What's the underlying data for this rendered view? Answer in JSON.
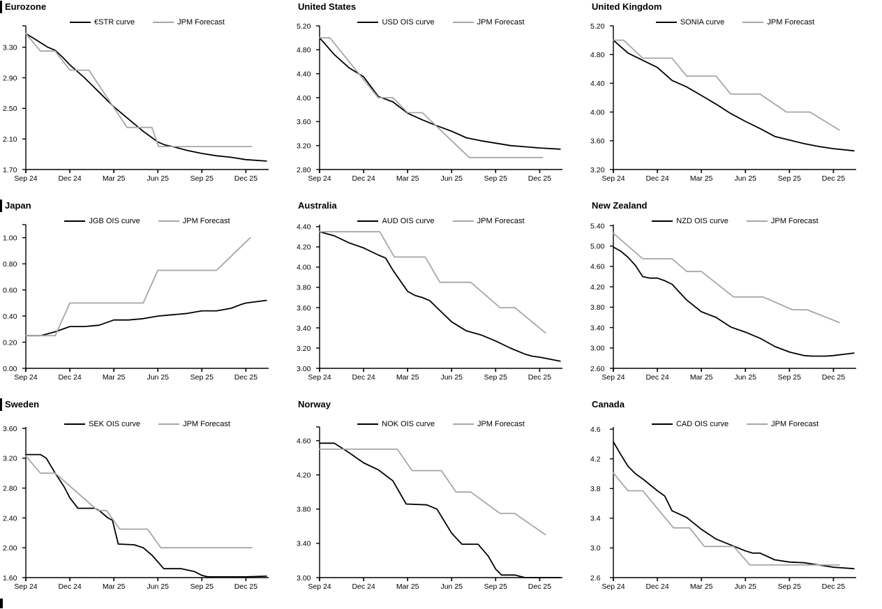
{
  "page": {
    "background": "#ffffff",
    "curve_color": "#000000",
    "forecast_color": "#a6a6a6",
    "xtick_labels_shared": [
      "Sep 24",
      "Dec 24",
      "Mar 25",
      "Jun 25",
      "Sep 25",
      "Dec 25"
    ]
  },
  "chart_data": [
    {
      "type": "line",
      "title": "Eurozone",
      "left_bar": true,
      "row": 0,
      "grid": false,
      "legend_position": "top-center-inside",
      "xtick_labels": [
        "Sep 24",
        "Dec 24",
        "Mar 25",
        "Jun 25",
        "Sep 25",
        "Dec 25"
      ],
      "xtick_positions": [
        0,
        3,
        6,
        9,
        12,
        15
      ],
      "xlim": [
        0,
        16.55
      ],
      "ylim": [
        1.7,
        3.58
      ],
      "yticks": [
        1.7,
        2.1,
        2.5,
        2.9,
        3.3
      ],
      "ytick_labels": [
        "1.70",
        "2.10",
        "2.50",
        "2.90",
        "3.30"
      ],
      "series": [
        {
          "name": "€STR curve",
          "color": "#000000",
          "x": [
            0,
            0.5,
            1,
            1.5,
            2,
            2.5,
            3,
            4,
            5,
            6,
            6.5,
            7,
            7.5,
            8,
            8.5,
            9,
            9.5,
            10,
            11,
            12,
            13,
            14,
            15,
            16.4
          ],
          "y": [
            3.48,
            3.42,
            3.36,
            3.3,
            3.26,
            3.17,
            3.07,
            2.9,
            2.71,
            2.52,
            2.44,
            2.36,
            2.28,
            2.2,
            2.13,
            2.06,
            2.02,
            2.0,
            1.95,
            1.91,
            1.88,
            1.86,
            1.83,
            1.81
          ]
        },
        {
          "name": "JPM Forecast",
          "color": "#a6a6a6",
          "x": [
            0,
            1,
            2,
            3,
            4.3,
            6.9,
            8.6,
            9.05,
            15.4
          ],
          "y": [
            3.48,
            3.25,
            3.25,
            3.0,
            3.0,
            2.25,
            2.25,
            2.0,
            2.0
          ]
        }
      ]
    },
    {
      "type": "line",
      "title": "United States",
      "left_bar": false,
      "row": 0,
      "grid": false,
      "legend_position": "top-center-inside",
      "xtick_labels": [
        "Sep 24",
        "Dec 24",
        "Mar 25",
        "Jun 25",
        "Sep 25",
        "Dec 25"
      ],
      "xtick_positions": [
        0,
        3,
        6,
        9,
        12,
        15
      ],
      "xlim": [
        0,
        16.55
      ],
      "ylim": [
        2.8,
        5.2
      ],
      "yticks": [
        2.8,
        3.2,
        3.6,
        4.0,
        4.4,
        4.8,
        5.2
      ],
      "ytick_labels": [
        "2.80",
        "3.20",
        "3.60",
        "4.00",
        "4.40",
        "4.80",
        "5.20"
      ],
      "series": [
        {
          "name": "USD OIS curve",
          "color": "#000000",
          "x": [
            0,
            1,
            2,
            3,
            4,
            5,
            6,
            7,
            8,
            9,
            10,
            11,
            12,
            13,
            14,
            15,
            16.4
          ],
          "y": [
            5.0,
            4.72,
            4.5,
            4.35,
            4.02,
            3.93,
            3.74,
            3.63,
            3.53,
            3.44,
            3.33,
            3.28,
            3.24,
            3.2,
            3.18,
            3.16,
            3.14
          ]
        },
        {
          "name": "JPM Forecast",
          "color": "#a6a6a6",
          "x": [
            0,
            0.7,
            4,
            5,
            6,
            7,
            10.2,
            15.2
          ],
          "y": [
            5.0,
            5.0,
            4.0,
            4.0,
            3.75,
            3.75,
            3.0,
            3.0
          ]
        }
      ]
    },
    {
      "type": "line",
      "title": "United Kingdom",
      "left_bar": false,
      "row": 0,
      "grid": false,
      "legend_position": "top-center-inside",
      "xtick_labels": [
        "Sep 24",
        "Dec 24",
        "Mar 25",
        "Jun 25",
        "Sep 25",
        "Dec 25"
      ],
      "xtick_positions": [
        0,
        3,
        6,
        9,
        12,
        15
      ],
      "xlim": [
        0,
        16.55
      ],
      "ylim": [
        3.2,
        5.2
      ],
      "yticks": [
        3.2,
        3.6,
        4.0,
        4.4,
        4.8,
        5.2
      ],
      "ytick_labels": [
        "3.20",
        "3.60",
        "4.00",
        "4.40",
        "4.80",
        "5.20"
      ],
      "series": [
        {
          "name": "SONIA curve",
          "color": "#000000",
          "x": [
            0,
            1,
            2,
            3,
            4,
            5,
            6,
            7,
            8,
            9,
            10,
            11,
            12,
            13,
            14,
            15,
            16.4
          ],
          "y": [
            5.0,
            4.82,
            4.72,
            4.62,
            4.44,
            4.35,
            4.23,
            4.11,
            3.98,
            3.87,
            3.77,
            3.66,
            3.61,
            3.56,
            3.52,
            3.49,
            3.46
          ]
        },
        {
          "name": "JPM Forecast",
          "color": "#a6a6a6",
          "x": [
            0,
            0.7,
            2,
            4,
            5,
            7,
            8,
            10,
            11.8,
            13.4,
            15.4
          ],
          "y": [
            5.0,
            5.0,
            4.75,
            4.75,
            4.5,
            4.5,
            4.25,
            4.25,
            4.0,
            4.0,
            3.75
          ]
        }
      ]
    },
    {
      "type": "line",
      "title": "Japan",
      "left_bar": true,
      "row": 1,
      "grid": false,
      "legend_position": "top-center-inside",
      "xtick_labels": [
        "Sep 24",
        "Dec 24",
        "Mar 25",
        "Jun 25",
        "Sep 25",
        "Dec 25"
      ],
      "xtick_positions": [
        0,
        3,
        6,
        9,
        12,
        15
      ],
      "xlim": [
        0,
        16.55
      ],
      "ylim": [
        0.0,
        1.1
      ],
      "yticks": [
        0.0,
        0.2,
        0.4,
        0.6,
        0.8,
        1.0
      ],
      "ytick_labels": [
        "0.00",
        "0.20",
        "0.40",
        "0.60",
        "0.80",
        "1.00"
      ],
      "series": [
        {
          "name": "JGB OIS curve",
          "color": "#000000",
          "x": [
            0,
            1,
            2,
            3,
            4,
            5,
            6,
            7,
            8,
            9,
            10,
            11,
            12,
            13,
            14,
            14.7,
            15,
            16.4
          ],
          "y": [
            0.25,
            0.25,
            0.28,
            0.32,
            0.32,
            0.33,
            0.37,
            0.37,
            0.38,
            0.4,
            0.41,
            0.42,
            0.44,
            0.44,
            0.46,
            0.49,
            0.5,
            0.52
          ]
        },
        {
          "name": "JPM Forecast",
          "color": "#a6a6a6",
          "x": [
            0,
            2,
            3,
            8,
            9,
            13,
            15.3
          ],
          "y": [
            0.25,
            0.25,
            0.5,
            0.5,
            0.75,
            0.75,
            1.0
          ]
        }
      ]
    },
    {
      "type": "line",
      "title": "Australia",
      "left_bar": false,
      "row": 1,
      "grid": false,
      "legend_position": "top-center-inside",
      "xtick_labels": [
        "Sep 24",
        "Dec 24",
        "Mar 25",
        "Jun 25",
        "Sep 25",
        "Dec 25"
      ],
      "xtick_positions": [
        0,
        3,
        6,
        9,
        12,
        15
      ],
      "xlim": [
        0,
        16.55
      ],
      "ylim": [
        3.0,
        4.42
      ],
      "yticks": [
        3.0,
        3.2,
        3.4,
        3.6,
        3.8,
        4.0,
        4.2,
        4.4
      ],
      "ytick_labels": [
        "3.00",
        "3.20",
        "3.40",
        "3.60",
        "3.80",
        "4.00",
        "4.20",
        "4.40"
      ],
      "series": [
        {
          "name": "AUD OIS curve",
          "color": "#000000",
          "x": [
            0,
            0.5,
            1,
            2,
            3,
            4,
            4.5,
            5,
            6,
            6.5,
            7,
            7.5,
            8,
            9,
            10,
            11,
            12,
            13,
            14,
            14.5,
            15,
            16.4
          ],
          "y": [
            4.35,
            4.33,
            4.31,
            4.24,
            4.19,
            4.12,
            4.09,
            3.97,
            3.76,
            3.72,
            3.7,
            3.67,
            3.6,
            3.46,
            3.37,
            3.33,
            3.27,
            3.2,
            3.14,
            3.12,
            3.11,
            3.07
          ]
        },
        {
          "name": "JPM Forecast",
          "color": "#a6a6a6",
          "x": [
            0,
            4.1,
            5.1,
            7.2,
            8.2,
            10.3,
            12.3,
            13.3,
            15.4
          ],
          "y": [
            4.35,
            4.35,
            4.1,
            4.1,
            3.85,
            3.85,
            3.6,
            3.6,
            3.35
          ]
        }
      ]
    },
    {
      "type": "line",
      "title": "New Zealand",
      "left_bar": false,
      "row": 1,
      "grid": false,
      "legend_position": "top-center-inside",
      "xtick_labels": [
        "Sep 24",
        "Dec 24",
        "Mar 25",
        "Jun 25",
        "Sep 25",
        "Dec 25"
      ],
      "xtick_positions": [
        0,
        3,
        6,
        9,
        12,
        15
      ],
      "xlim": [
        0,
        16.55
      ],
      "ylim": [
        2.6,
        5.42
      ],
      "yticks": [
        2.6,
        3.0,
        3.4,
        3.8,
        4.2,
        4.6,
        5.0,
        5.4
      ],
      "ytick_labels": [
        "2.60",
        "3.00",
        "3.40",
        "3.80",
        "4.20",
        "4.60",
        "5.00",
        "5.40"
      ],
      "series": [
        {
          "name": "NZD OIS curve",
          "color": "#000000",
          "x": [
            0,
            0.5,
            1,
            1.5,
            2,
            2.5,
            3,
            3.5,
            4,
            5,
            6,
            7,
            8,
            9,
            10,
            11,
            12,
            13,
            13.5,
            14,
            14.5,
            15,
            16.4
          ],
          "y": [
            4.98,
            4.9,
            4.78,
            4.62,
            4.4,
            4.37,
            4.37,
            4.32,
            4.25,
            3.94,
            3.71,
            3.6,
            3.41,
            3.31,
            3.19,
            3.03,
            2.92,
            2.85,
            2.84,
            2.84,
            2.84,
            2.85,
            2.9
          ]
        },
        {
          "name": "JPM Forecast",
          "color": "#a6a6a6",
          "x": [
            0,
            2,
            4,
            5,
            6,
            8.2,
            10.2,
            12.2,
            13.2,
            15.4
          ],
          "y": [
            5.25,
            4.75,
            4.75,
            4.5,
            4.5,
            4.0,
            4.0,
            3.75,
            3.75,
            3.5
          ]
        }
      ]
    },
    {
      "type": "line",
      "title": "Sweden",
      "left_bar": true,
      "row": 2,
      "grid": false,
      "legend_position": "top-center-inside",
      "xtick_labels": [
        "Sep 24",
        "Dec 24",
        "Mar 25",
        "Jun 25",
        "Sep 25",
        "Dec 25"
      ],
      "xtick_positions": [
        0,
        3,
        6,
        9,
        12,
        15
      ],
      "xlim": [
        0,
        16.55
      ],
      "ylim": [
        1.6,
        3.62
      ],
      "yticks": [
        1.6,
        2.0,
        2.4,
        2.8,
        3.2,
        3.6
      ],
      "ytick_labels": [
        "1.60",
        "2.00",
        "2.40",
        "2.80",
        "3.20",
        "3.60"
      ],
      "series": [
        {
          "name": "SEK OIS curve",
          "color": "#000000",
          "x": [
            0,
            1,
            1.4,
            2,
            2.6,
            3,
            3.55,
            4.7,
            5,
            5.6,
            5.9,
            6.3,
            7.4,
            8,
            8.6,
            9.4,
            10.6,
            11.5,
            12,
            12.4,
            13,
            15,
            16.4
          ],
          "y": [
            3.25,
            3.25,
            3.2,
            3.0,
            2.82,
            2.67,
            2.53,
            2.53,
            2.5,
            2.4,
            2.37,
            2.05,
            2.04,
            2.0,
            1.9,
            1.72,
            1.72,
            1.68,
            1.63,
            1.61,
            1.61,
            1.61,
            1.62
          ]
        },
        {
          "name": "JPM Forecast",
          "color": "#a6a6a6",
          "x": [
            0,
            1,
            2,
            4.9,
            5.5,
            6.4,
            8.3,
            9.2,
            15.4
          ],
          "y": [
            3.23,
            3.0,
            3.0,
            2.5,
            2.5,
            2.25,
            2.25,
            2.0,
            2.0
          ]
        }
      ]
    },
    {
      "type": "line",
      "title": "Norway",
      "left_bar": false,
      "row": 2,
      "grid": false,
      "legend_position": "top-center-inside",
      "xtick_labels": [
        "Sep 24",
        "Dec 24",
        "Mar 25",
        "Jun 25",
        "Sep 25",
        "Dec 25"
      ],
      "xtick_positions": [
        0,
        3,
        6,
        9,
        12,
        15
      ],
      "xlim": [
        0,
        16.55
      ],
      "ylim": [
        3.0,
        4.76
      ],
      "yticks": [
        3.0,
        3.4,
        3.8,
        4.2,
        4.6
      ],
      "ytick_labels": [
        "3.00",
        "3.40",
        "3.80",
        "4.20",
        "4.60"
      ],
      "series": [
        {
          "name": "NOK OIS curve",
          "color": "#000000",
          "x": [
            0,
            1,
            2,
            3,
            4,
            5,
            5.9,
            7.3,
            8,
            9,
            9.7,
            10.8,
            11.5,
            12,
            12.4,
            13.3,
            14,
            16.4
          ],
          "y": [
            4.57,
            4.57,
            4.46,
            4.34,
            4.26,
            4.13,
            3.86,
            3.85,
            3.8,
            3.52,
            3.39,
            3.39,
            3.25,
            3.1,
            3.03,
            3.03,
            3.0,
            3.0
          ]
        },
        {
          "name": "JPM Forecast",
          "color": "#a6a6a6",
          "x": [
            0,
            5.3,
            6.3,
            8.3,
            9.3,
            10.3,
            12.3,
            13.3,
            15.4
          ],
          "y": [
            4.5,
            4.5,
            4.25,
            4.25,
            4.0,
            4.0,
            3.75,
            3.75,
            3.5
          ]
        }
      ]
    },
    {
      "type": "line",
      "title": "Canada",
      "left_bar": false,
      "row": 2,
      "grid": false,
      "legend_position": "top-center-inside",
      "xtick_labels": [
        "Sep 24",
        "Dec 24",
        "Mar 25",
        "Jun 25",
        "Sep 25",
        "Dec 25"
      ],
      "xtick_positions": [
        0,
        3,
        6,
        9,
        12,
        15
      ],
      "xlim": [
        0,
        16.55
      ],
      "ylim": [
        2.6,
        4.63
      ],
      "yticks": [
        2.6,
        3.0,
        3.4,
        3.8,
        4.2,
        4.6
      ],
      "ytick_labels": [
        "2.6",
        "3.0",
        "3.4",
        "3.8",
        "4.2",
        "4.6"
      ],
      "series": [
        {
          "name": "CAD OIS curve",
          "color": "#000000",
          "x": [
            0,
            0.5,
            1,
            1.5,
            2,
            3,
            3.5,
            4,
            5,
            6,
            7,
            8,
            9,
            9.5,
            10,
            11,
            12,
            13,
            14,
            15,
            16.4
          ],
          "y": [
            4.43,
            4.26,
            4.1,
            4.0,
            3.93,
            3.77,
            3.7,
            3.5,
            3.41,
            3.25,
            3.12,
            3.04,
            2.96,
            2.93,
            2.93,
            2.84,
            2.81,
            2.8,
            2.77,
            2.74,
            2.72
          ]
        },
        {
          "name": "JPM Forecast",
          "color": "#a6a6a6",
          "x": [
            0,
            1,
            2,
            4.1,
            5.2,
            6.2,
            8.2,
            9.3,
            15.4
          ],
          "y": [
            4.01,
            3.77,
            3.77,
            3.27,
            3.27,
            3.02,
            3.02,
            2.77,
            2.77
          ]
        }
      ]
    }
  ]
}
